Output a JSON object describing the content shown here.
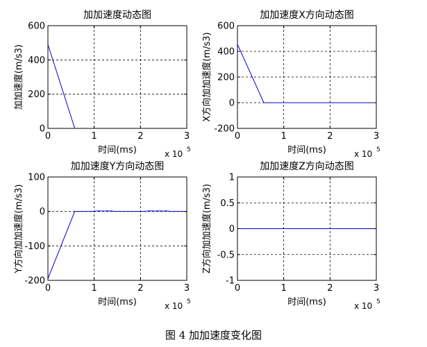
{
  "figure_caption": "图 4  加加速度变化图",
  "chart_data": [
    {
      "type": "line",
      "title": "加加速度动态图",
      "xlabel": "时间(ms)",
      "ylabel": "加加速度(m/s3)",
      "x_multiplier": "x 10",
      "x_exponent": "5",
      "xlim": [
        0,
        3
      ],
      "ylim": [
        0,
        600
      ],
      "xticks": [
        "0",
        "1",
        "2",
        "3"
      ],
      "yticks": [
        "0",
        "200",
        "400",
        "600"
      ],
      "xtick_values": [
        0,
        1,
        2,
        3
      ],
      "ytick_values": [
        0,
        200,
        400,
        600
      ],
      "grid": true,
      "line_color": "#0000c8",
      "series": [
        {
          "x": [
            0,
            0.58,
            3.0
          ],
          "y": [
            490,
            0,
            0
          ]
        }
      ]
    },
    {
      "type": "line",
      "title": "加加速度X方向动态图",
      "xlabel": "时间(ms)",
      "ylabel": "X方向加加速度(m/s3)",
      "x_multiplier": "x 10",
      "x_exponent": "5",
      "xlim": [
        0,
        3
      ],
      "ylim": [
        -200,
        600
      ],
      "xticks": [
        "0",
        "1",
        "2",
        "3"
      ],
      "yticks": [
        "-200",
        "0",
        "200",
        "400",
        "600"
      ],
      "xtick_values": [
        0,
        1,
        2,
        3
      ],
      "ytick_values": [
        -200,
        0,
        200,
        400,
        600
      ],
      "grid": true,
      "line_color": "#0000c8",
      "series": [
        {
          "x": [
            0,
            0.57,
            3.0
          ],
          "y": [
            455,
            0,
            0
          ]
        }
      ]
    },
    {
      "type": "line",
      "title": "加加速度Y方向动态图",
      "xlabel": "时间(ms)",
      "ylabel": "Y方向加加速度(m/s3)",
      "x_multiplier": "x 10",
      "x_exponent": "5",
      "xlim": [
        0,
        3
      ],
      "ylim": [
        -200,
        100
      ],
      "xticks": [
        "0",
        "1",
        "2",
        "3"
      ],
      "yticks": [
        "-200",
        "-100",
        "0",
        "100"
      ],
      "xtick_values": [
        0,
        1,
        2,
        3
      ],
      "ytick_values": [
        -200,
        -100,
        0,
        100
      ],
      "grid": true,
      "line_color": "#0000c8",
      "series": [
        {
          "x": [
            0,
            0.58,
            1.0,
            1.02,
            1.1,
            1.2,
            1.3,
            1.4,
            1.42,
            2.1,
            2.12,
            2.2,
            2.3,
            2.4,
            2.5,
            2.6,
            2.62,
            3.0
          ],
          "y": [
            -195,
            0,
            0,
            1,
            1.5,
            1,
            1.5,
            1,
            0,
            0,
            1,
            1.5,
            1,
            1.5,
            1,
            1.5,
            0,
            0
          ]
        }
      ]
    },
    {
      "type": "line",
      "title": "加加速度Z方向动态图",
      "xlabel": "时间(ms)",
      "ylabel": "Z方向加加速度(m/s3)",
      "x_multiplier": "x 10",
      "x_exponent": "5",
      "xlim": [
        0,
        3
      ],
      "ylim": [
        -1,
        1
      ],
      "xticks": [
        "0",
        "1",
        "2",
        "3"
      ],
      "yticks": [
        "-1",
        "-0.5",
        "0",
        "0.5",
        "1"
      ],
      "xtick_values": [
        0,
        1,
        2,
        3
      ],
      "ytick_values": [
        -1,
        -0.5,
        0,
        0.5,
        1
      ],
      "grid": true,
      "line_color": "#0000c8",
      "series": [
        {
          "x": [
            0,
            3
          ],
          "y": [
            0,
            0
          ]
        }
      ]
    }
  ]
}
